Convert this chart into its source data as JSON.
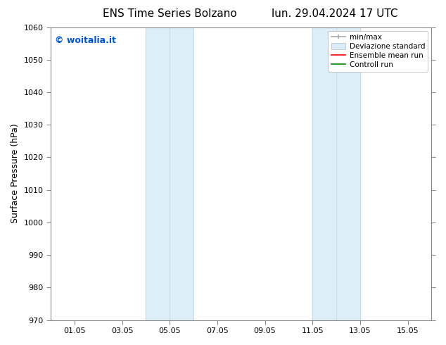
{
  "title_left": "ENS Time Series Bolzano",
  "title_right": "lun. 29.04.2024 17 UTC",
  "ylabel": "Surface Pressure (hPa)",
  "ylim": [
    970,
    1060
  ],
  "yticks": [
    970,
    980,
    990,
    1000,
    1010,
    1020,
    1030,
    1040,
    1050,
    1060
  ],
  "xtick_labels": [
    "01.05",
    "03.05",
    "05.05",
    "07.05",
    "09.05",
    "11.05",
    "13.05",
    "15.05"
  ],
  "xtick_days": [
    1,
    3,
    5,
    7,
    9,
    11,
    13,
    15
  ],
  "xlim_days": [
    0,
    16
  ],
  "shaded_bands": [
    {
      "x_start": 4.0,
      "x_end": 5.0,
      "color": "#ddeef8"
    },
    {
      "x_start": 5.0,
      "x_end": 6.0,
      "color": "#ddeef8"
    },
    {
      "x_start": 11.0,
      "x_end": 12.0,
      "color": "#ddeef8"
    },
    {
      "x_start": 12.0,
      "x_end": 13.0,
      "color": "#ddeef8"
    }
  ],
  "shade_divider_color": "#c8dce8",
  "shade_border_color": "#c8dce8",
  "watermark_text": "© woitalia.it",
  "watermark_color": "#0055cc",
  "legend_items": [
    {
      "label": "min/max"
    },
    {
      "label": "Deviazione standard"
    },
    {
      "label": "Ensemble mean run"
    },
    {
      "label": "Controll run"
    }
  ],
  "legend_colors": [
    "#aaaaaa",
    "#ccdde8",
    "red",
    "green"
  ],
  "bg_color": "#ffffff",
  "spine_color": "#888888",
  "tick_color": "#888888",
  "title_fontsize": 11,
  "axis_label_fontsize": 9,
  "tick_fontsize": 8,
  "watermark_fontsize": 9,
  "legend_fontsize": 7.5
}
